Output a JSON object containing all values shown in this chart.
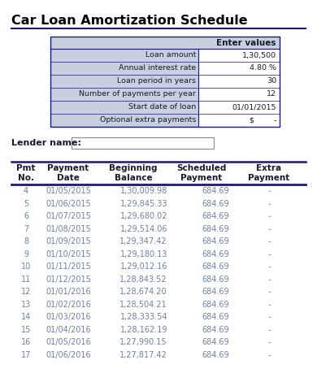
{
  "title": "Car Loan Amortization Schedule",
  "bg_color": "#ffffff",
  "input_table": {
    "header": "Enter values",
    "rows": [
      [
        "Loan amount",
        "1,30,500"
      ],
      [
        "Annual interest rate",
        "4.80 %"
      ],
      [
        "Loan period in years",
        "30"
      ],
      [
        "Number of payments per year",
        "12"
      ],
      [
        "Start date of loan",
        "01/01/2015"
      ],
      [
        "Optional extra payments",
        "$        -"
      ]
    ]
  },
  "lender_label": "Lender name:",
  "schedule_headers": [
    "Pmt\nNo.",
    "Payment\nDate",
    "Beginning\nBalance",
    "Scheduled\nPayment",
    "Extra\nPayment"
  ],
  "schedule_data": [
    [
      "4",
      "01/05/2015",
      "1,30,009.98",
      "684.69",
      "-"
    ],
    [
      "5",
      "01/06/2015",
      "1,29,845.33",
      "684.69",
      "-"
    ],
    [
      "6",
      "01/07/2015",
      "1,29,680.02",
      "684.69",
      "-"
    ],
    [
      "7",
      "01/08/2015",
      "1,29,514.06",
      "684.69",
      "-"
    ],
    [
      "8",
      "01/09/2015",
      "1,29,347.42",
      "684.69",
      "-"
    ],
    [
      "9",
      "01/10/2015",
      "1,29,180.13",
      "684.69",
      "-"
    ],
    [
      "10",
      "01/11/2015",
      "1,29,012.16",
      "684.69",
      "-"
    ],
    [
      "11",
      "01/12/2015",
      "1,28,843.52",
      "684.69",
      "-"
    ],
    [
      "12",
      "01/01/2016",
      "1,28,674.20",
      "684.69",
      "-"
    ],
    [
      "13",
      "01/02/2016",
      "1,28,504.21",
      "684.69",
      "-"
    ],
    [
      "14",
      "01/03/2016",
      "1,28,333.54",
      "684.69",
      "-"
    ],
    [
      "15",
      "01/04/2016",
      "1,28,162.19",
      "684.69",
      "-"
    ],
    [
      "16",
      "01/05/2016",
      "1,27,990.15",
      "684.69",
      "-"
    ],
    [
      "17",
      "01/06/2016",
      "1,27,817.42",
      "684.69",
      "-"
    ]
  ],
  "border_color": "#1a1a6e",
  "cell_bg_input": "#c8d0e0",
  "cell_bg_white": "#ffffff",
  "text_color_dark": "#1a1a2e",
  "text_color_data": "#7080a0",
  "title_color": "#000000",
  "lender_box_color": "#888888"
}
